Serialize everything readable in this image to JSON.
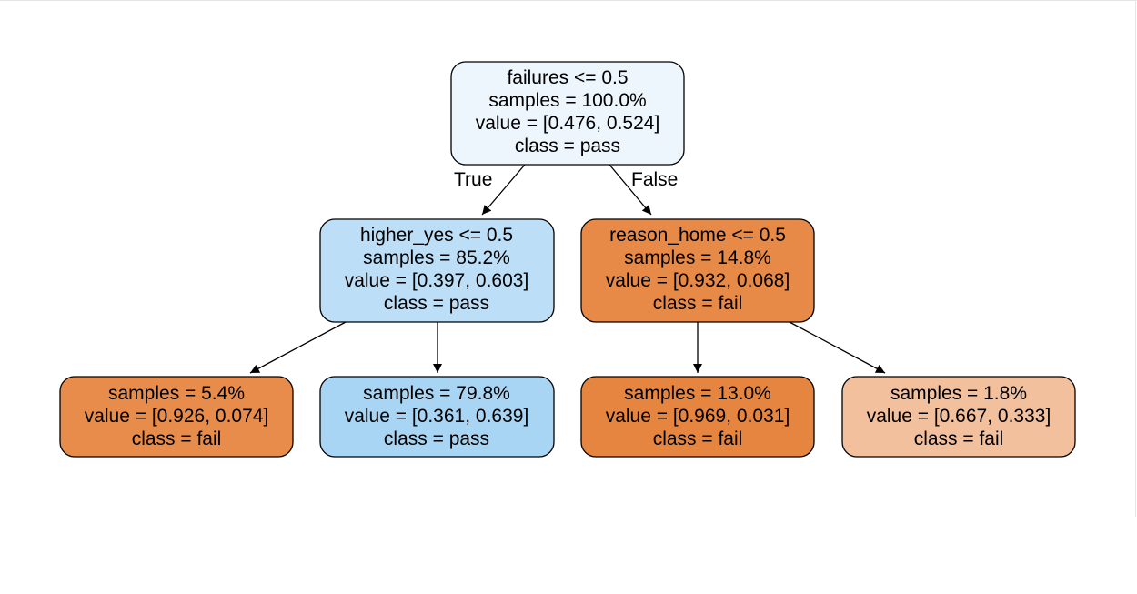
{
  "tree": {
    "nodes": [
      {
        "id": "root",
        "lines": [
          "failures <= 0.5",
          "samples = 100.0%",
          "value = [0.476, 0.524]",
          "class = pass"
        ],
        "fill": "#edf5fd"
      },
      {
        "id": "left",
        "lines": [
          "higher_yes <= 0.5",
          "samples = 85.2%",
          "value = [0.397, 0.603]",
          "class = pass"
        ],
        "fill": "#bcdef6"
      },
      {
        "id": "right",
        "lines": [
          "reason_home <= 0.5",
          "samples = 14.8%",
          "value = [0.932, 0.068]",
          "class = fail"
        ],
        "fill": "#e78a47"
      },
      {
        "id": "leaf1",
        "lines": [
          "samples = 5.4%",
          "value = [0.926, 0.074]",
          "class = fail"
        ],
        "fill": "#e78c4a"
      },
      {
        "id": "leaf2",
        "lines": [
          "samples = 79.8%",
          "value = [0.361, 0.639]",
          "class = pass"
        ],
        "fill": "#a9d5f4"
      },
      {
        "id": "leaf3",
        "lines": [
          "samples = 13.0%",
          "value = [0.969, 0.031]",
          "class = fail"
        ],
        "fill": "#e6853f"
      },
      {
        "id": "leaf4",
        "lines": [
          "samples = 1.8%",
          "value = [0.667, 0.333]",
          "class = fail"
        ],
        "fill": "#f2c09c"
      }
    ],
    "edges": [
      {
        "from": "root",
        "to": "left",
        "label": "True"
      },
      {
        "from": "root",
        "to": "right",
        "label": "False"
      },
      {
        "from": "left",
        "to": "leaf1",
        "label": ""
      },
      {
        "from": "left",
        "to": "leaf2",
        "label": ""
      },
      {
        "from": "right",
        "to": "leaf3",
        "label": ""
      },
      {
        "from": "right",
        "to": "leaf4",
        "label": ""
      }
    ]
  }
}
